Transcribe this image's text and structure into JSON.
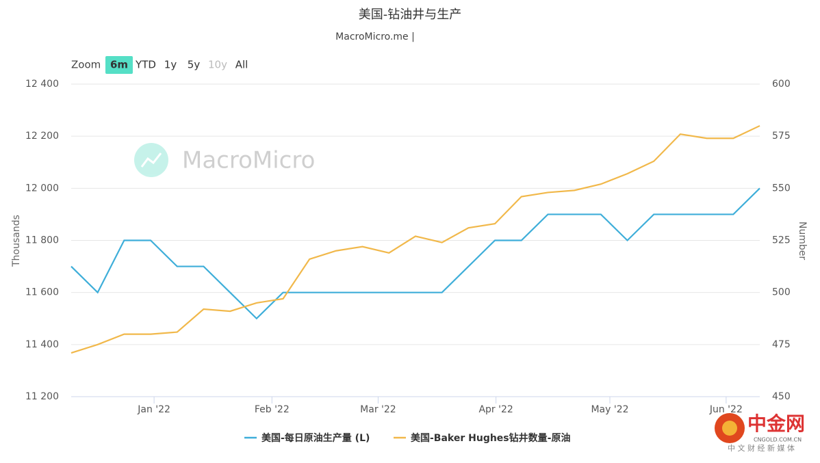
{
  "chart_data": {
    "type": "line",
    "title": "美国-钻油井与生产",
    "subtitle": "MacroMicro.me |",
    "ylabel": "Thousands",
    "y2label": "Number",
    "categories": [
      null,
      null,
      null,
      null,
      null,
      null,
      null,
      null,
      null,
      null,
      null,
      null,
      null,
      null,
      null,
      null,
      null,
      null,
      null,
      null,
      null,
      null,
      null,
      null,
      null,
      null,
      null
    ],
    "xticks": [
      {
        "value": 3.13,
        "label": "Jan '22"
      },
      {
        "value": 7.58,
        "label": "Feb '22"
      },
      {
        "value": 11.59,
        "label": "Mar '22"
      },
      {
        "value": 16.04,
        "label": "Apr '22"
      },
      {
        "value": 20.34,
        "label": "May '22"
      },
      {
        "value": 24.73,
        "label": "Jun '22"
      }
    ],
    "ylim": [
      11200,
      12400
    ],
    "yticks": [
      {
        "value": 11200,
        "label": "11 200"
      },
      {
        "value": 11400,
        "label": "11 400"
      },
      {
        "value": 11600,
        "label": "11 600"
      },
      {
        "value": 11800,
        "label": "11 800"
      },
      {
        "value": 12000,
        "label": "12 000"
      },
      {
        "value": 12200,
        "label": "12 200"
      },
      {
        "value": 12400,
        "label": "12 400"
      }
    ],
    "y2lim": [
      450,
      600
    ],
    "y2ticks": [
      450,
      475,
      500,
      525,
      550,
      575,
      600
    ],
    "grid": true,
    "series": [
      {
        "name": "美国-每日原油生产量 (L)",
        "color": "#3eaed9",
        "axis": "y",
        "values": [
          11700,
          11600,
          11800,
          11800,
          11700,
          11700,
          11600,
          11500,
          11600,
          11600,
          11600,
          11600,
          11600,
          11600,
          11600,
          11700,
          11800,
          11800,
          11900,
          11900,
          11900,
          11800,
          11900,
          11900,
          11900,
          11900,
          12000
        ]
      },
      {
        "name": "美国-Baker Hughes钻井数量-原油",
        "color": "#f1b84a",
        "axis": "y2",
        "values": [
          471,
          475,
          480,
          480,
          481,
          492,
          491,
          495,
          497,
          516,
          520,
          522,
          519,
          527,
          524,
          531,
          533,
          546,
          548,
          549,
          552,
          557,
          563,
          576,
          574,
          574,
          580
        ]
      }
    ]
  },
  "toolbar": {
    "label": "Zoom",
    "buttons": [
      "6m",
      "YTD",
      "1y",
      "5y",
      "10y",
      "All"
    ],
    "selected": "6m",
    "disabled": "10y"
  },
  "watermark": "MacroMicro",
  "logo": {
    "name": "中金网",
    "domain": "CNGOLD.COM.CN",
    "tagline": "中 文 财 经 新 媒 体"
  }
}
